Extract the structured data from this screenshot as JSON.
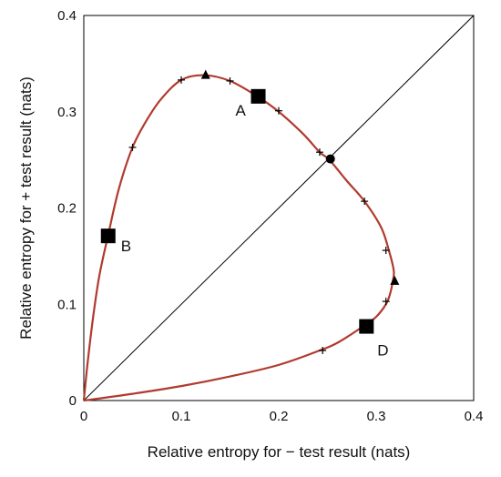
{
  "chart_data": {
    "type": "line",
    "title": "",
    "xlabel": "Relative entropy for − test result (nats)",
    "ylabel": "Relative entropy for + test result (nats)",
    "xlim": [
      0,
      0.4
    ],
    "ylim": [
      0,
      0.4
    ],
    "xticks": [
      "0",
      "0.1",
      "0.2",
      "0.3",
      "0.4"
    ],
    "yticks": [
      "0",
      "0.1",
      "0.2",
      "0.3",
      "0.4"
    ],
    "grid": false,
    "legend": "none",
    "diagonal": {
      "from": [
        0,
        0
      ],
      "to": [
        0.4,
        0.4
      ],
      "color": "#000000"
    },
    "series": [
      {
        "color": "#b03a2e",
        "points": [
          [
            0,
            0
          ],
          [
            0.004,
            0.04
          ],
          [
            0.01,
            0.09
          ],
          [
            0.016,
            0.13
          ],
          [
            0.025,
            0.172
          ],
          [
            0.036,
            0.22
          ],
          [
            0.05,
            0.263
          ],
          [
            0.065,
            0.292
          ],
          [
            0.08,
            0.314
          ],
          [
            0.1,
            0.333
          ],
          [
            0.123,
            0.338
          ],
          [
            0.15,
            0.332
          ],
          [
            0.178,
            0.316
          ],
          [
            0.2,
            0.3
          ],
          [
            0.225,
            0.277
          ],
          [
            0.242,
            0.258
          ],
          [
            0.252,
            0.25
          ],
          [
            0.27,
            0.228
          ],
          [
            0.288,
            0.207
          ],
          [
            0.305,
            0.18
          ],
          [
            0.313,
            0.156
          ],
          [
            0.318,
            0.135
          ],
          [
            0.317,
            0.124
          ],
          [
            0.314,
            0.11
          ],
          [
            0.31,
            0.1
          ],
          [
            0.3,
            0.087
          ],
          [
            0.288,
            0.078
          ],
          [
            0.262,
            0.061
          ],
          [
            0.242,
            0.052
          ],
          [
            0.2,
            0.037
          ],
          [
            0.15,
            0.025
          ],
          [
            0.1,
            0.015
          ],
          [
            0.05,
            0.007
          ],
          [
            0,
            0
          ]
        ]
      }
    ],
    "tick_marks": [
      [
        0.05,
        0.263
      ],
      [
        0.1,
        0.333
      ],
      [
        0.15,
        0.332
      ],
      [
        0.2,
        0.301
      ],
      [
        0.242,
        0.258
      ],
      [
        0.288,
        0.207
      ],
      [
        0.31,
        0.156
      ],
      [
        0.31,
        0.103
      ],
      [
        0.245,
        0.052
      ]
    ],
    "triangle_markers": [
      [
        0.125,
        0.338
      ],
      [
        0.319,
        0.124
      ]
    ],
    "circle_markers": [
      [
        0.253,
        0.251
      ]
    ],
    "labeled_points": [
      {
        "label": "A",
        "x": 0.179,
        "y": 0.316
      },
      {
        "label": "B",
        "x": 0.025,
        "y": 0.171
      },
      {
        "label": "D",
        "x": 0.29,
        "y": 0.077
      }
    ]
  }
}
